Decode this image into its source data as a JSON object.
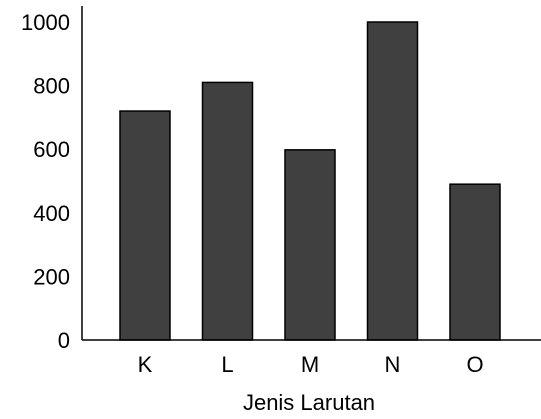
{
  "chart_data": {
    "type": "bar",
    "categories": [
      "K",
      "L",
      "M",
      "N",
      "O"
    ],
    "values": [
      720,
      810,
      598,
      1000,
      490
    ],
    "xlabel": "Jenis Larutan",
    "ylabel": "",
    "ylim": [
      0,
      1000
    ],
    "yticks": [
      0,
      200,
      400,
      600,
      800,
      1000
    ],
    "grid": false,
    "legend": "none",
    "bar_color": "#404040",
    "bar_edge_color": "#000000"
  }
}
